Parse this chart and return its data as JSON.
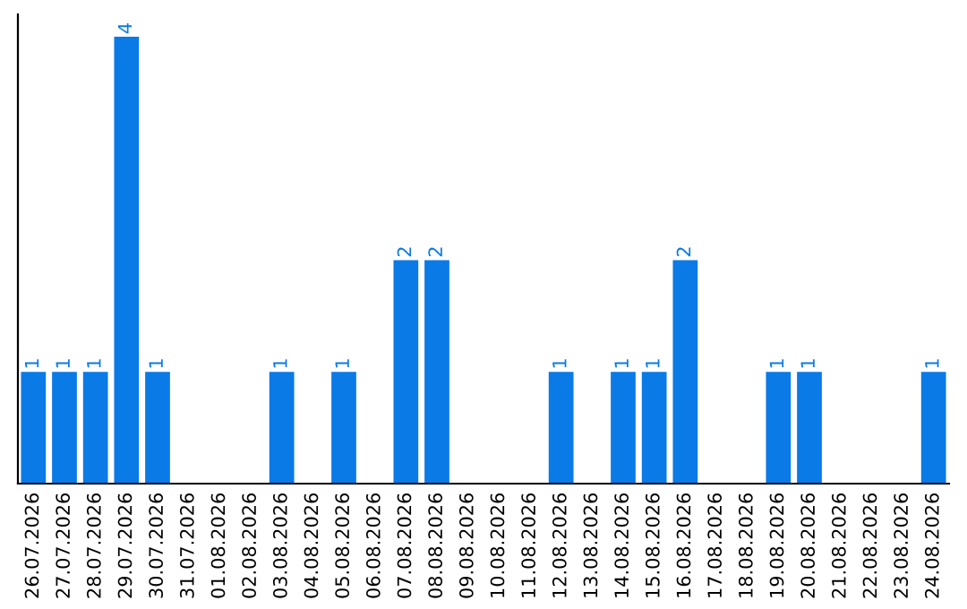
{
  "chart_data": {
    "type": "bar",
    "categories": [
      "26.07.2026",
      "27.07.2026",
      "28.07.2026",
      "29.07.2026",
      "30.07.2026",
      "31.07.2026",
      "01.08.2026",
      "02.08.2026",
      "03.08.2026",
      "04.08.2026",
      "05.08.2026",
      "06.08.2026",
      "07.08.2026",
      "08.08.2026",
      "09.08.2026",
      "10.08.2026",
      "11.08.2026",
      "12.08.2026",
      "13.08.2026",
      "14.08.2026",
      "15.08.2026",
      "16.08.2026",
      "17.08.2026",
      "18.08.2026",
      "19.08.2026",
      "20.08.2026",
      "21.08.2026",
      "22.08.2026",
      "23.08.2026",
      "24.08.2026"
    ],
    "values": [
      1,
      1,
      1,
      4,
      1,
      0,
      0,
      0,
      1,
      0,
      1,
      0,
      2,
      2,
      0,
      0,
      0,
      1,
      0,
      1,
      1,
      2,
      0,
      0,
      1,
      1,
      0,
      0,
      0,
      1
    ],
    "value_labels": [
      "1",
      "1",
      "1",
      "4",
      "1",
      null,
      null,
      null,
      "1",
      null,
      "1",
      null,
      "2",
      "2",
      null,
      null,
      null,
      "1",
      null,
      "1",
      "1",
      "2",
      null,
      null,
      "1",
      "1",
      null,
      null,
      null,
      "1"
    ],
    "color": "#0a7ae6",
    "tick_labels": "x"
  }
}
